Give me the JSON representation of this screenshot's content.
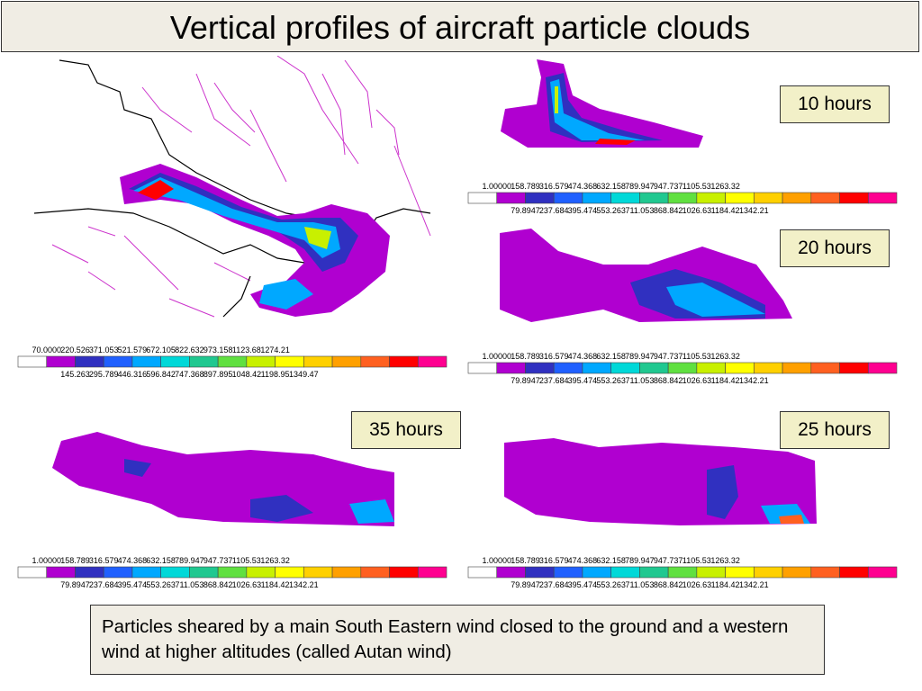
{
  "title": "Vertical profiles of aircraft particle clouds",
  "caption": "Particles sheared by a main South Eastern wind closed to the ground and a western wind at higher altitudes (called Autan wind)",
  "labels": {
    "h10": "10 hours",
    "h20": "20 hours",
    "h25": "25 hours",
    "h35": "35 hours"
  },
  "colorbars": {
    "big": {
      "top_labels": [
        "70.0000",
        "220.526",
        "371.053",
        "521.579",
        "672.105",
        "822.632",
        "973.158",
        "1123.68",
        "1274.21"
      ],
      "bottom_labels": [
        "145.263",
        "295.789",
        "446.316",
        "596.842",
        "747.368",
        "897.895",
        "1048.42",
        "1198.95",
        "1349.47"
      ]
    },
    "small": {
      "top_labels": [
        "1.00000",
        "158.789",
        "316.579",
        "474.368",
        "632.158",
        "789.947",
        "947.737",
        "1105.53",
        "1263.32"
      ],
      "bottom_labels": [
        "79.8947",
        "237.684",
        "395.474",
        "553.263",
        "711.053",
        "868.842",
        "1026.63",
        "1184.42",
        "1342.21"
      ]
    },
    "colors": [
      "#ffffff",
      "#b000d0",
      "#3030c0",
      "#2060ff",
      "#00a8ff",
      "#00d8d8",
      "#20c890",
      "#60e040",
      "#c8f000",
      "#ffff00",
      "#ffd000",
      "#ffa000",
      "#ff6020",
      "#ff0000",
      "#ff0090"
    ]
  }
}
